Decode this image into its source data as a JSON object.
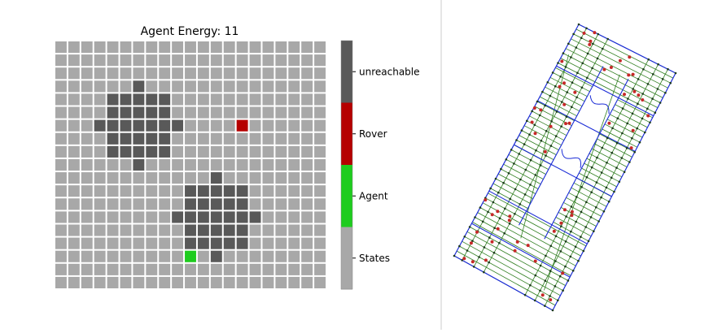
{
  "chart_data": [
    {
      "type": "heatmap",
      "title": "Agent Energy: 11",
      "grid": {
        "rows": 19,
        "cols": 21
      },
      "colorbar": {
        "labels": [
          "unreachable",
          "Rover",
          "Agent",
          "States"
        ],
        "colors": [
          "#595959",
          "#b50000",
          "#1ecc1e",
          "#a8a8a8"
        ]
      },
      "cells": {
        "unreachable": [
          [
            3,
            6
          ],
          [
            4,
            4
          ],
          [
            4,
            5
          ],
          [
            4,
            6
          ],
          [
            4,
            7
          ],
          [
            4,
            8
          ],
          [
            5,
            4
          ],
          [
            5,
            5
          ],
          [
            5,
            6
          ],
          [
            5,
            7
          ],
          [
            5,
            8
          ],
          [
            6,
            3
          ],
          [
            6,
            4
          ],
          [
            6,
            5
          ],
          [
            6,
            6
          ],
          [
            6,
            7
          ],
          [
            6,
            8
          ],
          [
            6,
            9
          ],
          [
            7,
            4
          ],
          [
            7,
            5
          ],
          [
            7,
            6
          ],
          [
            7,
            7
          ],
          [
            7,
            8
          ],
          [
            8,
            4
          ],
          [
            8,
            5
          ],
          [
            8,
            6
          ],
          [
            8,
            7
          ],
          [
            8,
            8
          ],
          [
            9,
            6
          ],
          [
            10,
            12
          ],
          [
            11,
            10
          ],
          [
            11,
            11
          ],
          [
            11,
            12
          ],
          [
            11,
            13
          ],
          [
            11,
            14
          ],
          [
            12,
            10
          ],
          [
            12,
            11
          ],
          [
            12,
            12
          ],
          [
            12,
            13
          ],
          [
            12,
            14
          ],
          [
            13,
            9
          ],
          [
            13,
            10
          ],
          [
            13,
            11
          ],
          [
            13,
            12
          ],
          [
            13,
            13
          ],
          [
            13,
            14
          ],
          [
            13,
            15
          ],
          [
            14,
            10
          ],
          [
            14,
            11
          ],
          [
            14,
            12
          ],
          [
            14,
            13
          ],
          [
            14,
            14
          ],
          [
            15,
            10
          ],
          [
            15,
            11
          ],
          [
            15,
            12
          ],
          [
            15,
            13
          ],
          [
            15,
            14
          ],
          [
            16,
            12
          ]
        ],
        "Rover": [
          [
            6,
            14
          ]
        ],
        "Agent": [
          [
            16,
            10
          ]
        ]
      }
    },
    {
      "type": "network",
      "title": "",
      "colors": {
        "edge_green": "#2e7d1e",
        "edge_blue": "#1a2bd6",
        "node_red": "#c62828",
        "node_dark": "#1d3a1d"
      }
    }
  ]
}
